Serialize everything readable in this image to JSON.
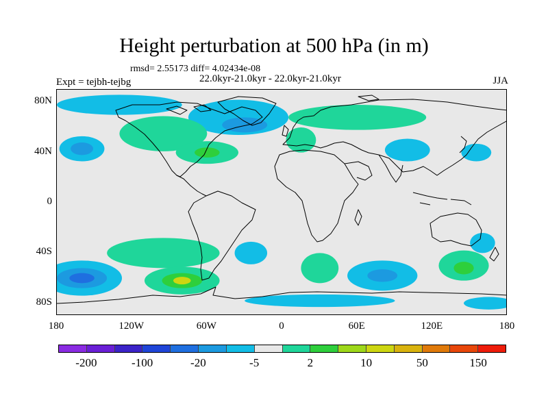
{
  "title": "Height perturbation at 500 hPa (in m)",
  "stats_line": "rmsd= 2.55173 diff= 4.02434e-08",
  "period_line": "22.0kyr-21.0kyr - 22.0kyr-21.0kyr",
  "experiment_label": "Expt = tejbh-tejbg",
  "season": "JJA",
  "map": {
    "projection": "cylindrical equidistant",
    "lon_range": [
      -180,
      180
    ],
    "lat_range": [
      -90,
      90
    ],
    "background_color": "#e8e8e8",
    "y_ticks": [
      {
        "label": "80N",
        "lat": 80
      },
      {
        "label": "40N",
        "lat": 40
      },
      {
        "label": "0",
        "lat": 0
      },
      {
        "label": "40S",
        "lat": -40
      },
      {
        "label": "80S",
        "lat": -80
      }
    ],
    "x_ticks": [
      {
        "label": "180",
        "lon": -180
      },
      {
        "label": "120W",
        "lon": -120
      },
      {
        "label": "60W",
        "lon": -60
      },
      {
        "label": "0",
        "lon": 0
      },
      {
        "label": "60E",
        "lon": 60
      },
      {
        "label": "120E",
        "lon": 120
      },
      {
        "label": "180",
        "lon": 180
      }
    ]
  },
  "colorbar": {
    "colors": [
      "#8a2be2",
      "#6a1fd6",
      "#3b23c8",
      "#1f45d8",
      "#1f6fe0",
      "#1c9ae0",
      "#12bde6",
      "#e8e8e8",
      "#1fd69a",
      "#2ecf3c",
      "#9ed81a",
      "#cdd611",
      "#d9b30e",
      "#e07a0a",
      "#e8470a",
      "#ee1c0a"
    ],
    "labels": [
      "-200",
      "-100",
      "-20",
      "-5",
      "2",
      "10",
      "50",
      "150"
    ]
  },
  "anomalies": [
    {
      "name": "north-pacific-arctic-negative",
      "lon": -130,
      "lat": 78,
      "rlon": 50,
      "rlat": 8,
      "color_index": 6
    },
    {
      "name": "north-atlantic-negative-outer",
      "lon": -35,
      "lat": 68,
      "rlon": 40,
      "rlat": 14,
      "color_index": 6
    },
    {
      "name": "north-atlantic-negative-core",
      "lon": -30,
      "lat": 62,
      "rlon": 18,
      "rlat": 6,
      "color_index": 5
    },
    {
      "name": "north-pacific-negative-outer",
      "lon": -160,
      "lat": 43,
      "rlon": 18,
      "rlat": 10,
      "color_index": 6
    },
    {
      "name": "north-pacific-negative-core",
      "lon": -160,
      "lat": 43,
      "rlon": 9,
      "rlat": 5,
      "color_index": 5
    },
    {
      "name": "north-america-positive-outer",
      "lon": -95,
      "lat": 55,
      "rlon": 35,
      "rlat": 14,
      "color_index": 8
    },
    {
      "name": "western-atlantic-positive-outer",
      "lon": -60,
      "lat": 40,
      "rlon": 25,
      "rlat": 9,
      "color_index": 8
    },
    {
      "name": "western-atlantic-positive-core",
      "lon": -60,
      "lat": 40,
      "rlon": 10,
      "rlat": 4,
      "color_index": 9
    },
    {
      "name": "siberia-positive",
      "lon": 60,
      "lat": 68,
      "rlon": 55,
      "rlat": 10,
      "color_index": 8
    },
    {
      "name": "europe-positive",
      "lon": 15,
      "lat": 50,
      "rlon": 12,
      "rlat": 10,
      "color_index": 8
    },
    {
      "name": "central-asia-negative",
      "lon": 100,
      "lat": 42,
      "rlon": 18,
      "rlat": 9,
      "color_index": 6
    },
    {
      "name": "east-asia-negative",
      "lon": 155,
      "lat": 40,
      "rlon": 12,
      "rlat": 7,
      "color_index": 6
    },
    {
      "name": "south-pacific-negative-outer",
      "lon": -160,
      "lat": -60,
      "rlon": 32,
      "rlat": 14,
      "color_index": 6
    },
    {
      "name": "south-pacific-negative-mid",
      "lon": -160,
      "lat": -60,
      "rlon": 20,
      "rlat": 8,
      "color_index": 5
    },
    {
      "name": "south-pacific-negative-core",
      "lon": -160,
      "lat": -60,
      "rlon": 10,
      "rlat": 4,
      "color_index": 4
    },
    {
      "name": "south-pacific-positive-outer",
      "lon": -95,
      "lat": -40,
      "rlon": 45,
      "rlat": 12,
      "color_index": 8
    },
    {
      "name": "south-america-positive-outer",
      "lon": -80,
      "lat": -62,
      "rlon": 30,
      "rlat": 11,
      "color_index": 8
    },
    {
      "name": "south-america-positive-mid",
      "lon": -80,
      "lat": -62,
      "rlon": 16,
      "rlat": 6,
      "color_index": 9
    },
    {
      "name": "south-america-positive-core",
      "lon": -80,
      "lat": -62,
      "rlon": 7,
      "rlat": 3,
      "color_index": 11
    },
    {
      "name": "south-atlantic-negative",
      "lon": -25,
      "lat": -40,
      "rlon": 13,
      "rlat": 9,
      "color_index": 6
    },
    {
      "name": "south-africa-positive",
      "lon": 30,
      "lat": -52,
      "rlon": 15,
      "rlat": 12,
      "color_index": 8
    },
    {
      "name": "indian-ocean-negative-outer",
      "lon": 80,
      "lat": -58,
      "rlon": 28,
      "rlat": 12,
      "color_index": 6
    },
    {
      "name": "indian-ocean-negative-core",
      "lon": 80,
      "lat": -58,
      "rlon": 12,
      "rlat": 5,
      "color_index": 5
    },
    {
      "name": "australia-positive-outer",
      "lon": 145,
      "lat": -50,
      "rlon": 20,
      "rlat": 12,
      "color_index": 8
    },
    {
      "name": "australia-positive-core",
      "lon": 145,
      "lat": -52,
      "rlon": 8,
      "rlat": 5,
      "color_index": 9
    },
    {
      "name": "tasman-negative",
      "lon": 160,
      "lat": -32,
      "rlon": 10,
      "rlat": 8,
      "color_index": 6
    },
    {
      "name": "antarctic-coast-negative",
      "lon": 30,
      "lat": -78,
      "rlon": 60,
      "rlat": 5,
      "color_index": 6
    },
    {
      "name": "antarctic-pacific-negative",
      "lon": 165,
      "lat": -80,
      "rlon": 20,
      "rlat": 5,
      "color_index": 6
    }
  ]
}
